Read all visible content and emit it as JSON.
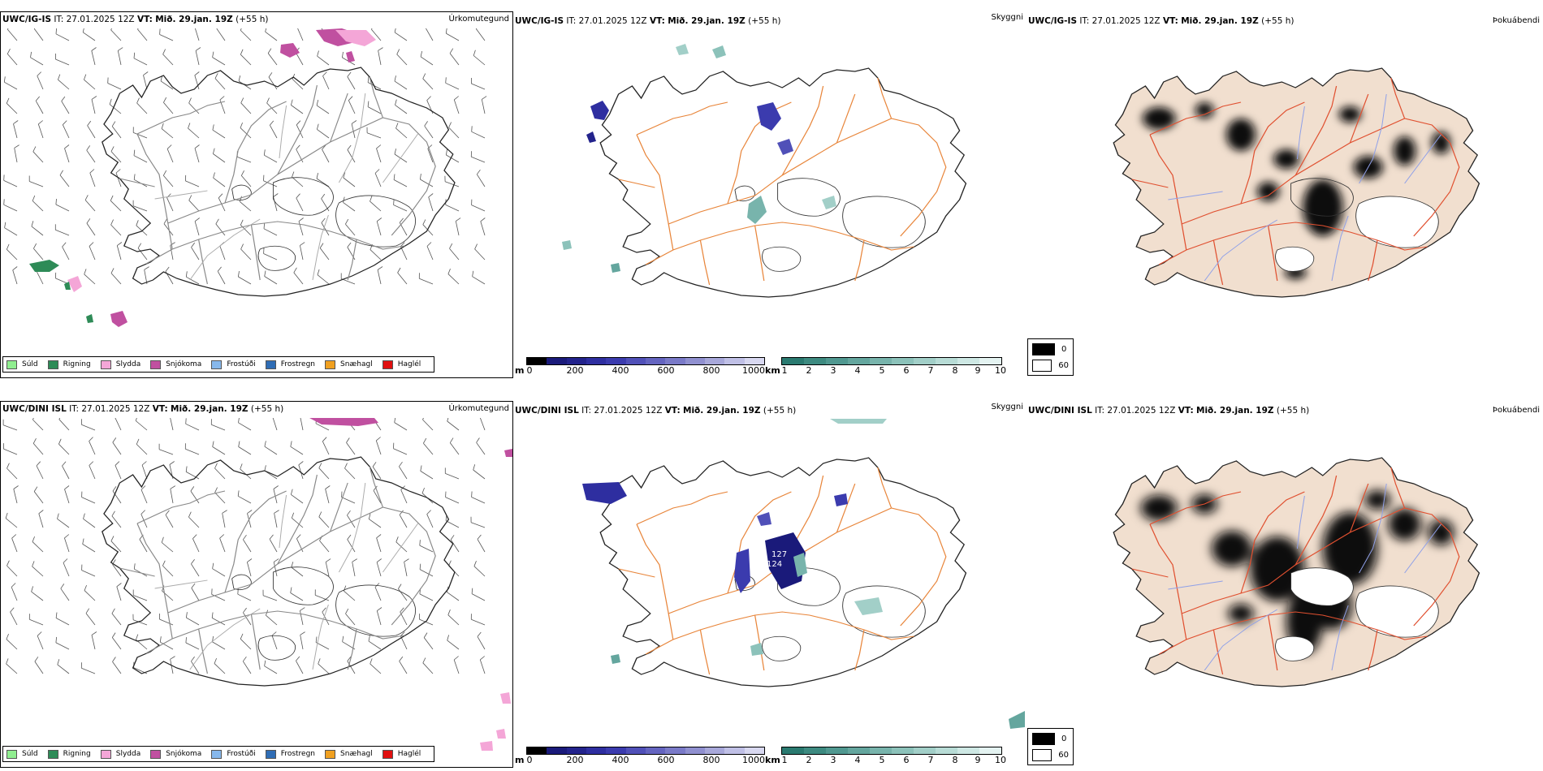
{
  "rows": [
    {
      "model": "UWC/IG-IS",
      "it_label": "IT:",
      "it_value": "27.01.2025 12Z",
      "vt_label": "VT:",
      "vt_value": "Mið. 29.jan. 19Z",
      "lead": "(+55 h)"
    },
    {
      "model": "UWC/DINI ISL",
      "it_label": "IT:",
      "it_value": "27.01.2025 12Z",
      "vt_label": "VT:",
      "vt_value": "Mið. 29.jan. 19Z",
      "lead": "(+55 h)"
    }
  ],
  "panels": {
    "precip_title": "Úrkomutegund",
    "ceiling_title": "Skyggni",
    "fog_title": "Þokuábendi"
  },
  "precip_legend": [
    {
      "label": "Súld",
      "color": "#90ee90"
    },
    {
      "label": "Rigning",
      "color": "#2e8b57"
    },
    {
      "label": "Slydda",
      "color": "#f4a6d7"
    },
    {
      "label": "Snjókoma",
      "color": "#c050a0"
    },
    {
      "label": "Frostúði",
      "color": "#87b8ec"
    },
    {
      "label": "Frostregn",
      "color": "#2f6db5"
    },
    {
      "label": "Snæhagl",
      "color": "#f0a020"
    },
    {
      "label": "Haglél",
      "color": "#e01010"
    }
  ],
  "ceiling_bar": {
    "unit": "m",
    "ticks": [
      "0",
      "200",
      "400",
      "600",
      "800",
      "1000"
    ],
    "colors": [
      "#000000",
      "#1a1a7a",
      "#23238c",
      "#2e2ea0",
      "#3b3bae",
      "#5050b8",
      "#6464c0",
      "#7a7ac8",
      "#9090d0",
      "#a8a8da",
      "#c0c0e6",
      "#d8d8f0"
    ]
  },
  "visibility_bar": {
    "unit": "km",
    "ticks": [
      "1",
      "2",
      "3",
      "4",
      "5",
      "6",
      "7",
      "8",
      "9",
      "10"
    ],
    "colors": [
      "#2a7a70",
      "#3d8a80",
      "#509890",
      "#64a69e",
      "#78b4ac",
      "#8cc2ba",
      "#a2cfc8",
      "#b8dcd6",
      "#cee8e4",
      "#e4f3f1"
    ]
  },
  "fog_key": [
    {
      "label": "0",
      "color": "#000000"
    },
    {
      "label": "60",
      "color": "#ffffff"
    }
  ],
  "map_layers": {
    "land_fog_color": "#f1dfcf",
    "road_color_orange": "#e8853a",
    "road_color_red": "#e05030",
    "river_color": "#8fa0e8",
    "coast_color": "#000000"
  }
}
